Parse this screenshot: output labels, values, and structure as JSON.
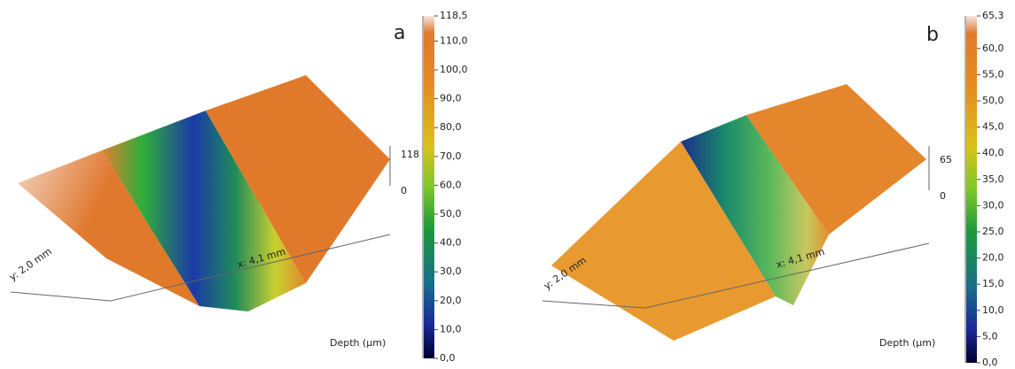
{
  "panels": [
    {
      "label": "a",
      "x_axis": "x: 4,1 mm",
      "y_axis": "y: 2,0 mm",
      "z_top": "118",
      "z_bottom": "0",
      "colorbar_title": "Depth (μm)",
      "colorbar_ticks": [
        "118,5",
        "110,0",
        "100,0",
        "90,0",
        "80,0",
        "70,0",
        "60,0",
        "50,0",
        "40,0",
        "30,0",
        "20,0",
        "10,0",
        "0,0"
      ]
    },
    {
      "label": "b",
      "x_axis": "x: 4,1 mm",
      "y_axis": "y: 2,0 mm",
      "z_top": "65",
      "z_bottom": "0",
      "colorbar_title": "Depth (μm)",
      "colorbar_ticks": [
        "65,3",
        "60,0",
        "55,0",
        "50,0",
        "45,0",
        "40,0",
        "35,0",
        "30,0",
        "25,0",
        "20,0",
        "15,0",
        "10,0",
        "5,0",
        "0,0"
      ]
    }
  ]
}
